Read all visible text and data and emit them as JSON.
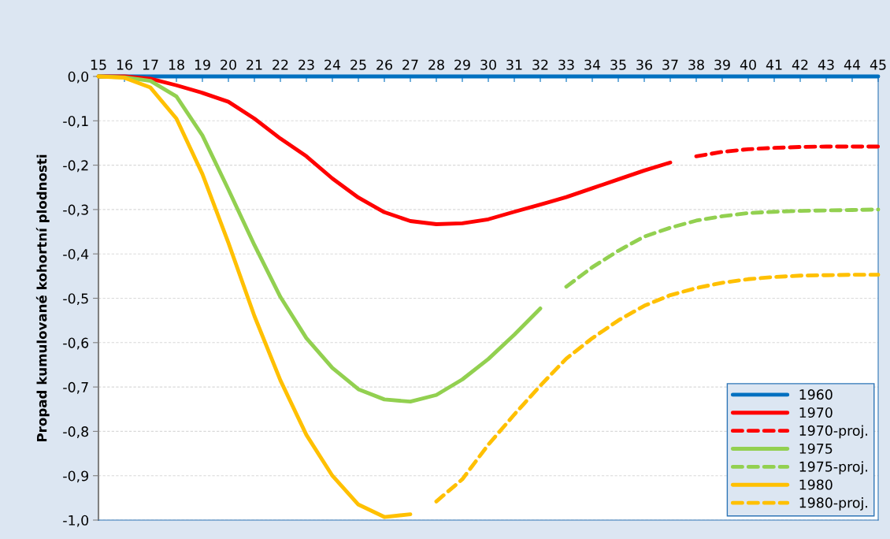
{
  "chart_data": {
    "type": "line",
    "ylabel": "Propad kumulované kohortní plodnosti",
    "xlim": [
      15,
      45
    ],
    "xticks": [
      15,
      16,
      17,
      18,
      19,
      20,
      21,
      22,
      23,
      24,
      25,
      26,
      27,
      28,
      29,
      30,
      31,
      32,
      33,
      34,
      35,
      36,
      37,
      38,
      39,
      40,
      41,
      42,
      43,
      44,
      45
    ],
    "ylim": [
      -1.0,
      0.0
    ],
    "yticks": [
      {
        "value": -1.0,
        "label": "-1,0"
      },
      {
        "value": -0.9,
        "label": "-0,9"
      },
      {
        "value": -0.8,
        "label": "-0,8"
      },
      {
        "value": -0.7,
        "label": "-0,7"
      },
      {
        "value": -0.6,
        "label": "-0,6"
      },
      {
        "value": -0.5,
        "label": "-0,5"
      },
      {
        "value": -0.4,
        "label": "-0,4"
      },
      {
        "value": -0.3,
        "label": "-0,3"
      },
      {
        "value": -0.2,
        "label": "-0,2"
      },
      {
        "value": -0.1,
        "label": "-0,1"
      },
      {
        "value": 0.0,
        "label": "0,0"
      }
    ],
    "grid": "y",
    "legend": "bottom right",
    "series": [
      {
        "name": "1960",
        "color": "#0070c0",
        "line_style": "solid",
        "x": [
          15,
          16,
          17,
          18,
          19,
          20,
          21,
          22,
          23,
          24,
          25,
          26,
          27,
          28,
          29,
          30,
          31,
          32,
          33,
          34,
          35,
          36,
          37,
          38,
          39,
          40,
          41,
          42,
          43,
          44,
          45
        ],
        "values": [
          0,
          0,
          0,
          0,
          0,
          0,
          0,
          0,
          0,
          0,
          0,
          0,
          0,
          0,
          0,
          0,
          0,
          0,
          0,
          0,
          0,
          0,
          0,
          0,
          0,
          0,
          0,
          0,
          0,
          0,
          0
        ]
      },
      {
        "name": "1970",
        "color": "#ff0000",
        "line_style": "solid",
        "x": [
          15,
          16,
          17,
          18,
          19,
          20,
          21,
          22,
          23,
          24,
          25,
          26,
          27,
          28,
          29,
          30,
          31,
          32,
          33,
          34,
          35,
          36,
          37
        ],
        "values": [
          0,
          0,
          -0.005,
          -0.02,
          -0.037,
          -0.057,
          -0.095,
          -0.14,
          -0.18,
          -0.23,
          -0.273,
          -0.306,
          -0.326,
          -0.333,
          -0.331,
          -0.322,
          -0.305,
          -0.289,
          -0.272,
          -0.252,
          -0.232,
          -0.212,
          -0.194
        ]
      },
      {
        "name": "1970-proj.",
        "color": "#ff0000",
        "line_style": "dashed",
        "x": [
          38,
          39,
          40,
          41,
          42,
          43,
          44,
          45
        ],
        "values": [
          -0.18,
          -0.17,
          -0.164,
          -0.161,
          -0.159,
          -0.158,
          -0.158,
          -0.158
        ]
      },
      {
        "name": "1975",
        "color": "#92d050",
        "line_style": "solid",
        "x": [
          15,
          16,
          17,
          18,
          19,
          20,
          21,
          22,
          23,
          24,
          25,
          26,
          27,
          28,
          29,
          30,
          31,
          32
        ],
        "values": [
          0,
          -0.002,
          -0.01,
          -0.045,
          -0.133,
          -0.255,
          -0.38,
          -0.497,
          -0.59,
          -0.657,
          -0.705,
          -0.728,
          -0.733,
          -0.718,
          -0.683,
          -0.637,
          -0.582,
          -0.523
        ]
      },
      {
        "name": "1975-proj.",
        "color": "#92d050",
        "line_style": "dashed",
        "x": [
          33,
          34,
          35,
          36,
          37,
          38,
          39,
          40,
          41,
          42,
          43,
          44,
          45
        ],
        "values": [
          -0.474,
          -0.43,
          -0.393,
          -0.361,
          -0.341,
          -0.325,
          -0.315,
          -0.308,
          -0.305,
          -0.303,
          -0.302,
          -0.301,
          -0.3
        ]
      },
      {
        "name": "1980",
        "color": "#ffc000",
        "line_style": "solid",
        "x": [
          15,
          16,
          17,
          18,
          19,
          20,
          21,
          22,
          23,
          24,
          25,
          26,
          27
        ],
        "values": [
          0,
          -0.003,
          -0.025,
          -0.095,
          -0.22,
          -0.375,
          -0.54,
          -0.685,
          -0.808,
          -0.9,
          -0.965,
          -0.993,
          -0.987
        ]
      },
      {
        "name": "1980-proj.",
        "color": "#ffc000",
        "line_style": "dashed",
        "x": [
          28,
          29,
          30,
          31,
          32,
          33,
          34,
          35,
          36,
          37,
          38,
          39,
          40,
          41,
          42,
          43,
          44,
          45
        ],
        "values": [
          -0.958,
          -0.908,
          -0.83,
          -0.762,
          -0.697,
          -0.636,
          -0.59,
          -0.55,
          -0.517,
          -0.493,
          -0.477,
          -0.465,
          -0.457,
          -0.452,
          -0.449,
          -0.448,
          -0.447,
          -0.447
        ]
      }
    ]
  }
}
